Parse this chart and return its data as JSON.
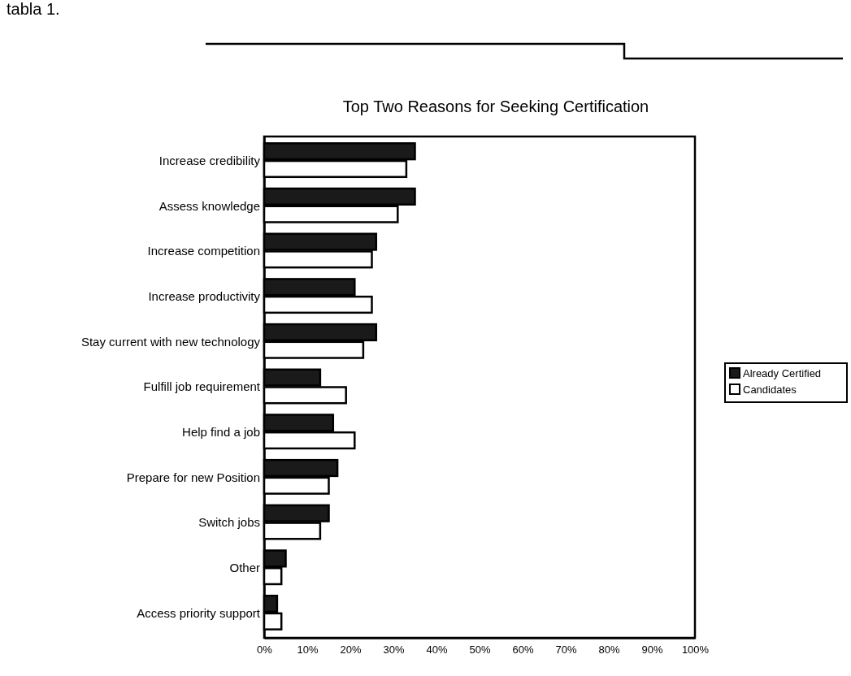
{
  "chart_data": {
    "type": "bar",
    "orientation": "horizontal",
    "title": "Top Two Reasons for Seeking Certification",
    "annotations": [
      "tabla 1."
    ],
    "categories": [
      "Increase credibility",
      "Assess knowledge",
      "Increase competition",
      "Increase productivity",
      "Stay current with new technology",
      "Fulfill job requirement",
      "Help find a job",
      "Prepare for new Position",
      "Switch jobs",
      "Other",
      "Access priority support"
    ],
    "series": [
      {
        "name": "Already Certified",
        "color": "#1a1a1a",
        "values": [
          35,
          35,
          26,
          21,
          26,
          13,
          16,
          17,
          15,
          5,
          3
        ]
      },
      {
        "name": "Candidates",
        "color": "#ffffff",
        "values": [
          33,
          31,
          25,
          25,
          23,
          19,
          21,
          15,
          13,
          4,
          4
        ]
      }
    ],
    "xlim": [
      0,
      100
    ],
    "xticks": [
      {
        "value": 0,
        "label": "0%"
      },
      {
        "value": 10,
        "label": "10%"
      },
      {
        "value": 20,
        "label": "20%"
      },
      {
        "value": 30,
        "label": "30%"
      },
      {
        "value": 40,
        "label": "40%"
      },
      {
        "value": 50,
        "label": "50%"
      },
      {
        "value": 60,
        "label": "60%"
      },
      {
        "value": 70,
        "label": "70%"
      },
      {
        "value": 80,
        "label": "80%"
      },
      {
        "value": 90,
        "label": "90%"
      },
      {
        "value": 100,
        "label": "100%"
      }
    ],
    "grid": false,
    "legend": "right"
  }
}
